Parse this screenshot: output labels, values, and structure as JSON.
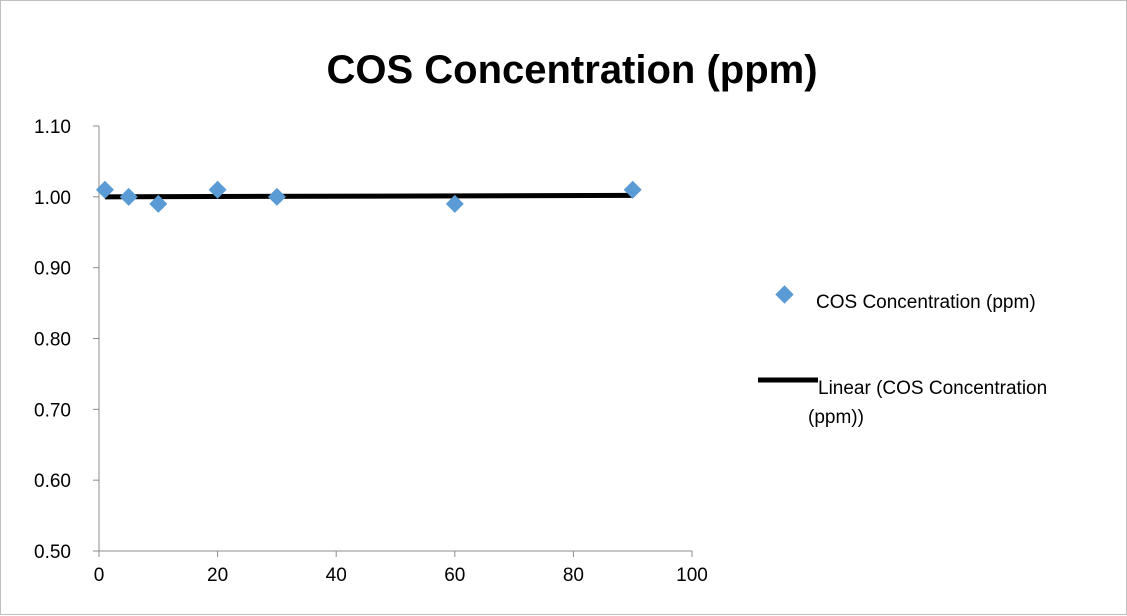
{
  "chart_data": {
    "type": "scatter",
    "title": "COS Concentration (ppm)",
    "xlabel": "",
    "ylabel": "",
    "xlim": [
      0,
      100
    ],
    "ylim": [
      0.5,
      1.1
    ],
    "x_ticks": [
      0,
      20,
      40,
      60,
      80,
      100
    ],
    "x_tick_labels": [
      "0",
      "20",
      "40",
      "60",
      "80",
      "100"
    ],
    "y_ticks": [
      0.5,
      0.6,
      0.7,
      0.8,
      0.9,
      1.0,
      1.1
    ],
    "y_tick_labels": [
      "0.50",
      "0.60",
      "0.70",
      "0.80",
      "0.90",
      "1.00",
      "1.10"
    ],
    "grid": false,
    "legend_position": "right",
    "series": [
      {
        "name": "COS Concentration (ppm)",
        "marker": "diamond",
        "color": "#5b9bd5",
        "x": [
          1,
          5,
          10,
          20,
          30,
          60,
          90
        ],
        "y": [
          1.01,
          1.0,
          0.99,
          1.01,
          1.0,
          0.99,
          1.01
        ]
      }
    ],
    "trendline": {
      "name": "Linear (COS Concentration (ppm))",
      "type": "linear",
      "color": "#000000",
      "x": [
        1,
        90
      ],
      "y": [
        1.0,
        1.002
      ]
    },
    "legend": [
      {
        "label": "COS Concentration (ppm)",
        "kind": "marker"
      },
      {
        "label_lines": [
          "Linear (COS Concentration",
          "(ppm))"
        ],
        "kind": "line"
      }
    ]
  }
}
